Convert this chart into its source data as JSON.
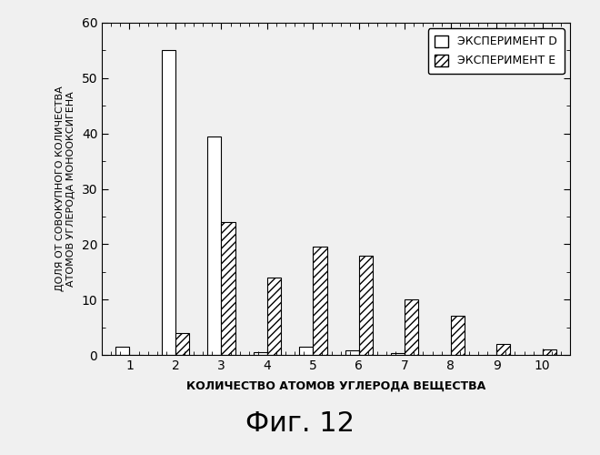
{
  "categories": [
    1,
    2,
    3,
    4,
    5,
    6,
    7,
    8,
    9,
    10
  ],
  "experiment_D": [
    1.5,
    55.0,
    39.5,
    0.5,
    1.5,
    0.8,
    0.4,
    0.0,
    0.0,
    0.0
  ],
  "experiment_E": [
    0.0,
    4.0,
    24.0,
    14.0,
    19.5,
    18.0,
    10.0,
    7.0,
    2.0,
    1.0
  ],
  "xlabel": "КОЛИЧЕСТВО АТОМОВ УГЛЕРОДА ВЕЩЕСТВА",
  "ylabel": "ДОЛЯ ОТ СОВОКУПНОГО КОЛИЧЕСТВА\nАТОМОВ УГЛЕРОДА МОНООКСИГЕНА",
  "ylim": [
    0,
    60
  ],
  "yticks": [
    0,
    10,
    20,
    30,
    40,
    50,
    60
  ],
  "legend_D": "ЭКСПЕРИМЕНТ D",
  "legend_E": "ЭКСПЕРИМЕНТ E",
  "bar_width": 0.3,
  "color_D": "#ffffff",
  "color_E_hatch": "////",
  "color_E_face": "#ffffff",
  "edge_color": "#000000",
  "background_color": "#f0f0f0",
  "fig_caption": "Фиг. 12",
  "caption_fontsize": 22
}
